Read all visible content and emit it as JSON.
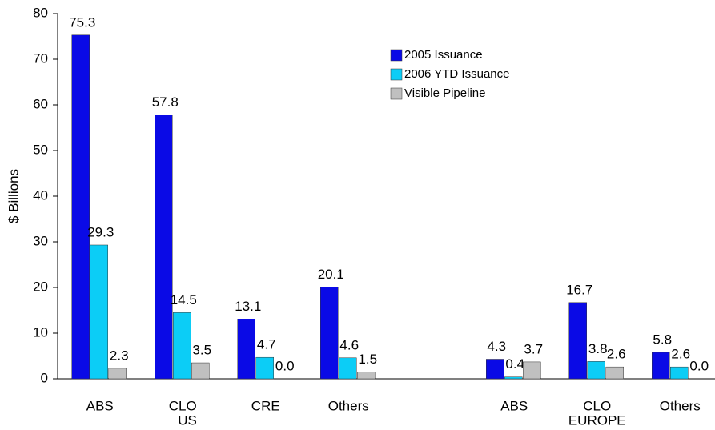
{
  "chart_data": {
    "type": "bar",
    "y_label": "$ Billions",
    "categories": [
      "ABS",
      "CLO",
      "CRE",
      "Others",
      null,
      "ABS",
      "CLO",
      "Others"
    ],
    "groups": [
      "US",
      "EUROPE"
    ],
    "series": [
      {
        "name": "2005 Issuance",
        "color": "#0a0ae6",
        "values": [
          75.3,
          57.8,
          13.1,
          20.1,
          null,
          4.3,
          16.7,
          5.8
        ],
        "value_labels": [
          "75.3",
          "57.8",
          "13.1",
          "20.1",
          null,
          "4.3",
          "16.7",
          "5.8"
        ]
      },
      {
        "name": "2006 YTD Issuance",
        "color": "#0ccdf6",
        "values": [
          29.3,
          14.5,
          4.7,
          4.6,
          null,
          0.4,
          3.8,
          2.6
        ],
        "value_labels": [
          "29.3",
          "14.5",
          "4.7",
          "4.6",
          null,
          "0.4",
          "3.8",
          "2.6"
        ]
      },
      {
        "name": "Visible Pipeline",
        "color": "#c0c0c0",
        "values": [
          2.3,
          3.5,
          0.0,
          1.5,
          null,
          3.7,
          2.6,
          0.0
        ],
        "value_labels": [
          "2.3",
          "3.5",
          "0.0",
          "1.5",
          null,
          "3.7",
          "2.6",
          "0.0"
        ]
      }
    ],
    "ylim": [
      0,
      80
    ],
    "yticks": [
      0,
      10,
      20,
      30,
      40,
      50,
      60,
      70,
      80
    ],
    "legend": "top-center"
  }
}
